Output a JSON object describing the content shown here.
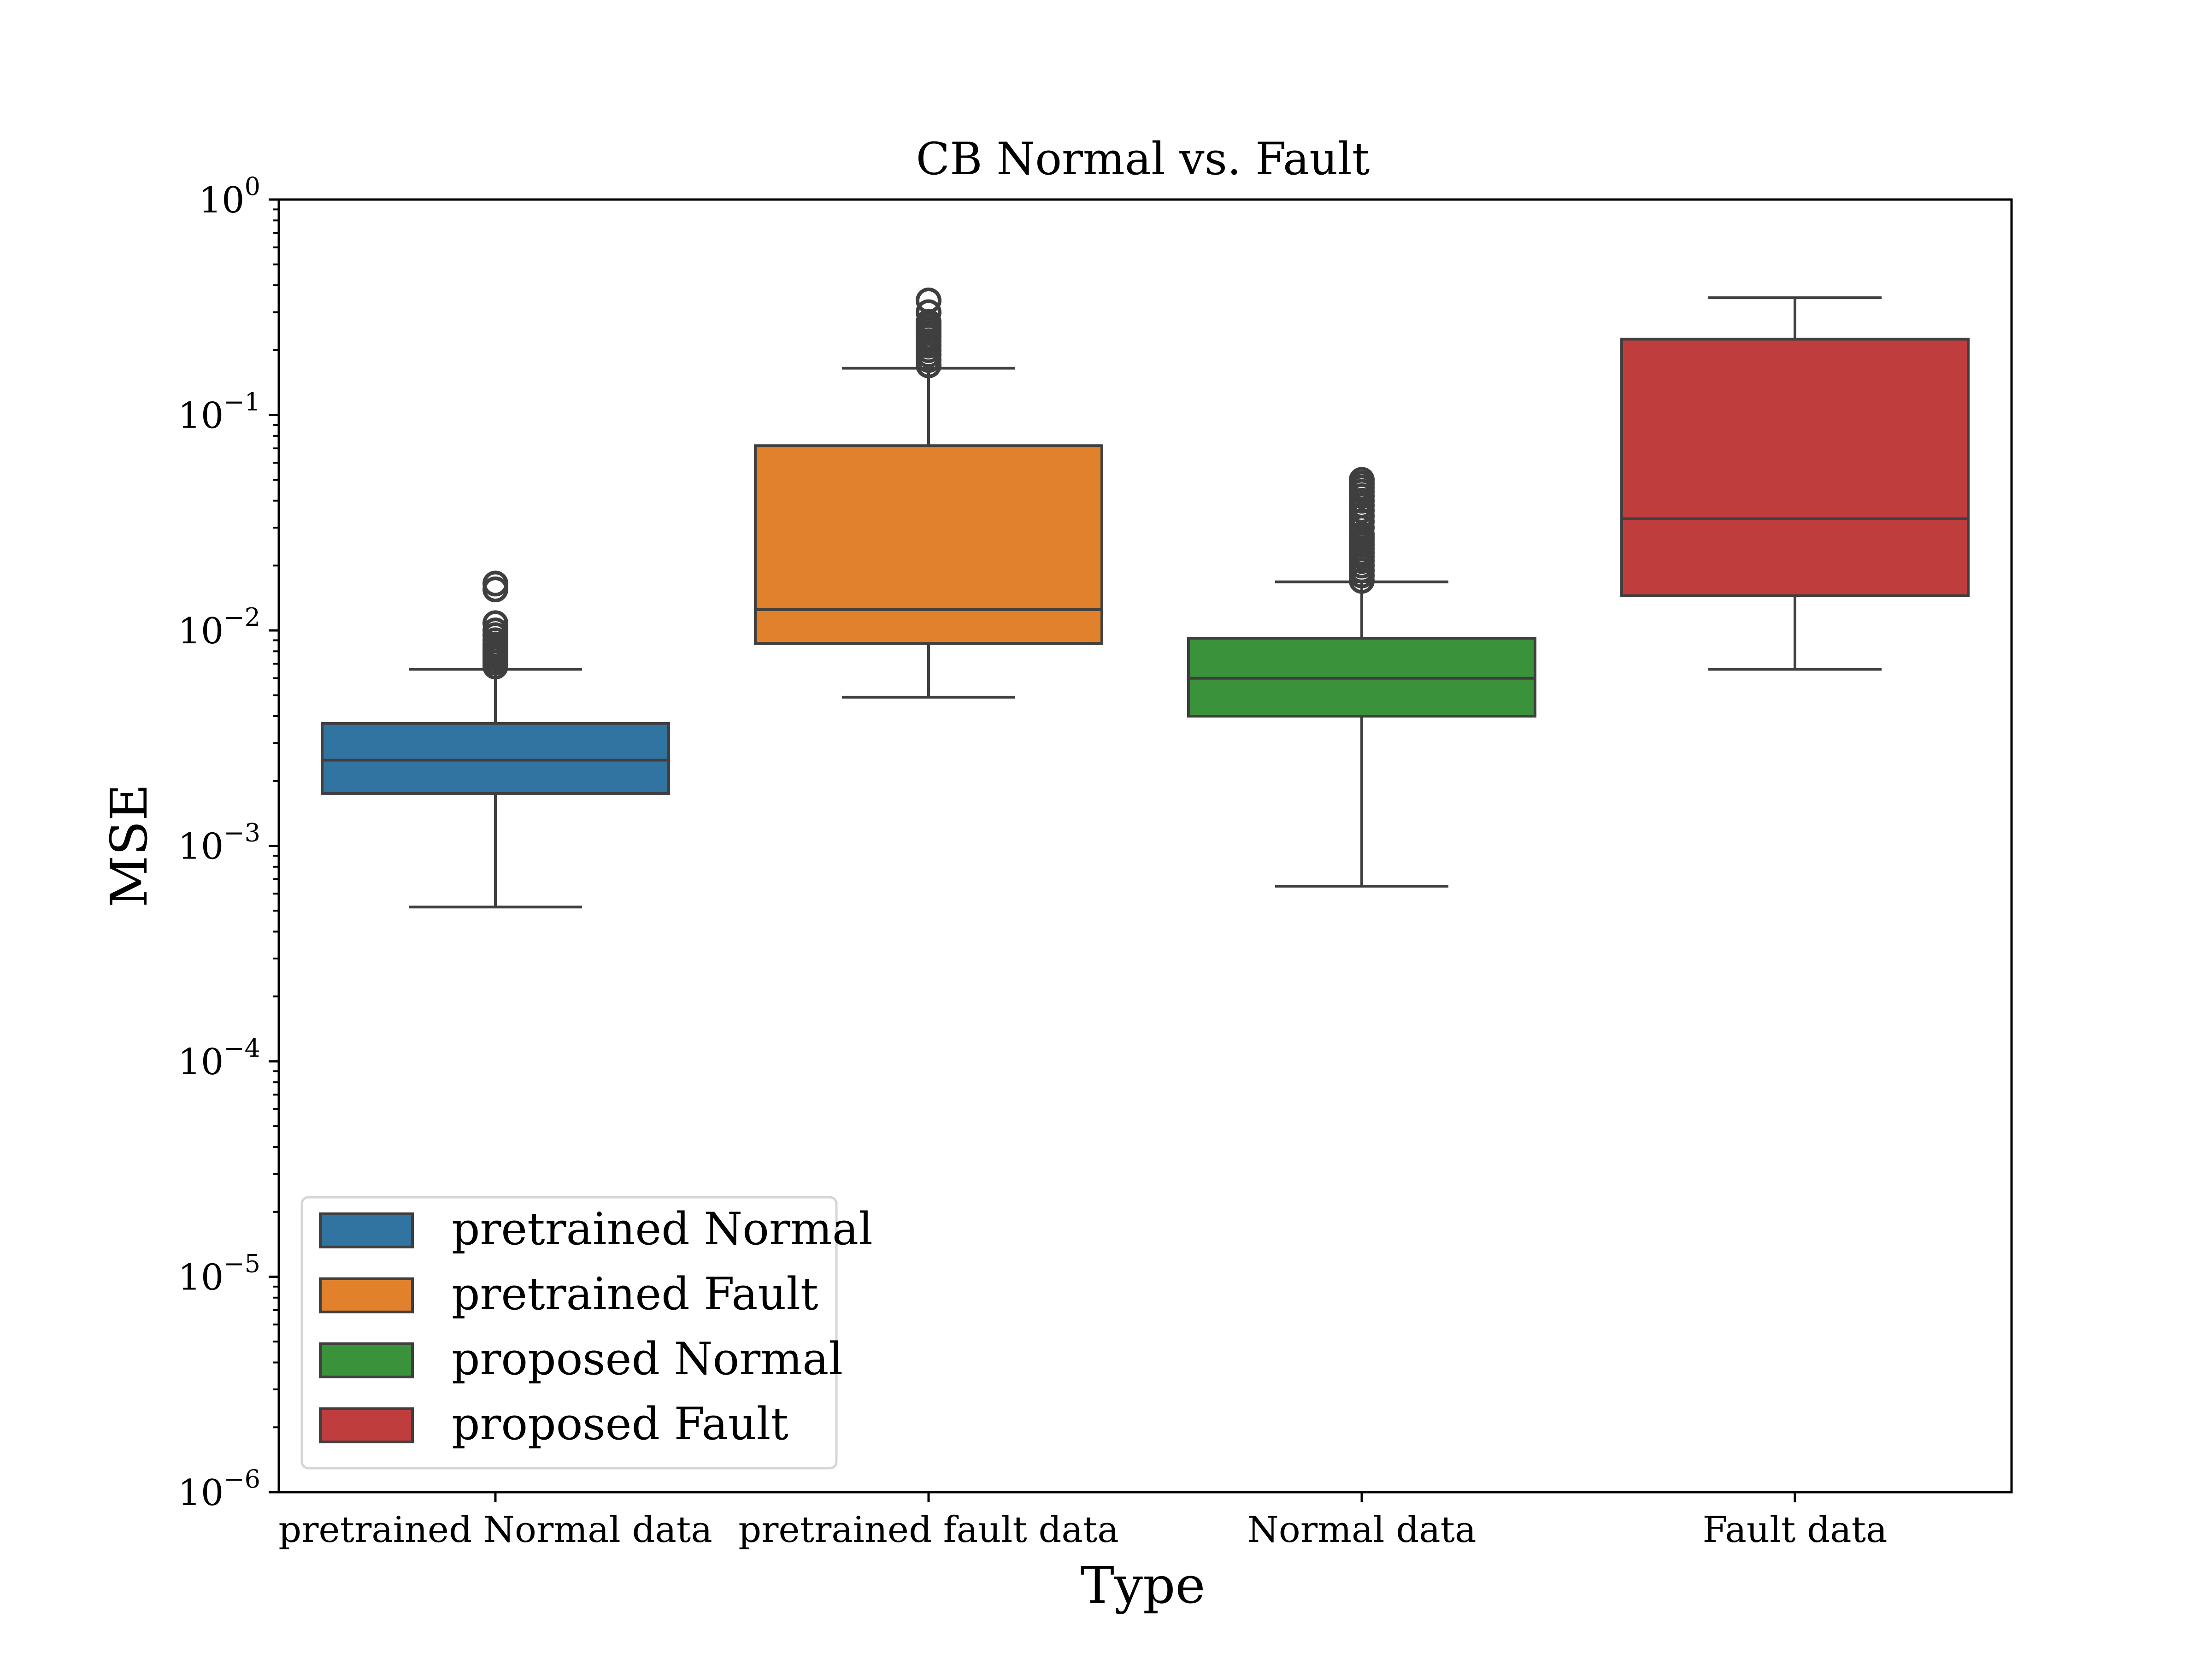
{
  "chart_data": {
    "type": "box",
    "title": "CB Normal vs. Fault",
    "xlabel": "Type",
    "ylabel": "MSE",
    "yscale": "log",
    "ylim": [
      1e-06,
      1
    ],
    "yticks": [
      {
        "value": 1,
        "base": "10",
        "exp": "0"
      },
      {
        "value": 0.1,
        "base": "10",
        "exp": "−1"
      },
      {
        "value": 0.01,
        "base": "10",
        "exp": "−2"
      },
      {
        "value": 0.001,
        "base": "10",
        "exp": "−3"
      },
      {
        "value": 0.0001,
        "base": "10",
        "exp": "−4"
      },
      {
        "value": 1e-05,
        "base": "10",
        "exp": "−5"
      },
      {
        "value": 1e-06,
        "base": "10",
        "exp": "−6"
      }
    ],
    "grid": false,
    "legend_position": "lower-left",
    "categories": [
      "pretrained Normal data",
      "pretrained fault data",
      "Normal data",
      "Fault data"
    ],
    "series": [
      {
        "name": "pretrained Normal",
        "color": "#3274a1",
        "category": 0,
        "whisker_low": 0.00052,
        "q1": 0.00175,
        "median": 0.0025,
        "q3": 0.0037,
        "whisker_high": 0.0066,
        "outliers": [
          0.0068,
          0.0071,
          0.0074,
          0.0077,
          0.008,
          0.0083,
          0.0086,
          0.009,
          0.0095,
          0.01,
          0.0108,
          0.0155,
          0.0165
        ]
      },
      {
        "name": "pretrained Fault",
        "color": "#e1812c",
        "category": 1,
        "whisker_low": 0.0049,
        "q1": 0.0087,
        "median": 0.0125,
        "q3": 0.072,
        "whisker_high": 0.165,
        "outliers": [
          0.17,
          0.18,
          0.19,
          0.2,
          0.21,
          0.22,
          0.23,
          0.24,
          0.25,
          0.26,
          0.27,
          0.3,
          0.34
        ]
      },
      {
        "name": "proposed Normal",
        "color": "#3a923a",
        "category": 2,
        "whisker_low": 0.00065,
        "q1": 0.004,
        "median": 0.006,
        "q3": 0.0092,
        "whisker_high": 0.0168,
        "outliers": [
          0.017,
          0.018,
          0.019,
          0.02,
          0.021,
          0.022,
          0.023,
          0.024,
          0.025,
          0.026,
          0.027,
          0.028,
          0.03,
          0.032,
          0.034,
          0.036,
          0.038,
          0.04,
          0.042,
          0.044,
          0.046,
          0.048,
          0.05
        ]
      },
      {
        "name": "proposed Fault",
        "color": "#c03d3e",
        "category": 3,
        "whisker_low": 0.0066,
        "q1": 0.0145,
        "median": 0.033,
        "q3": 0.225,
        "whisker_high": 0.35,
        "outliers": []
      }
    ]
  }
}
